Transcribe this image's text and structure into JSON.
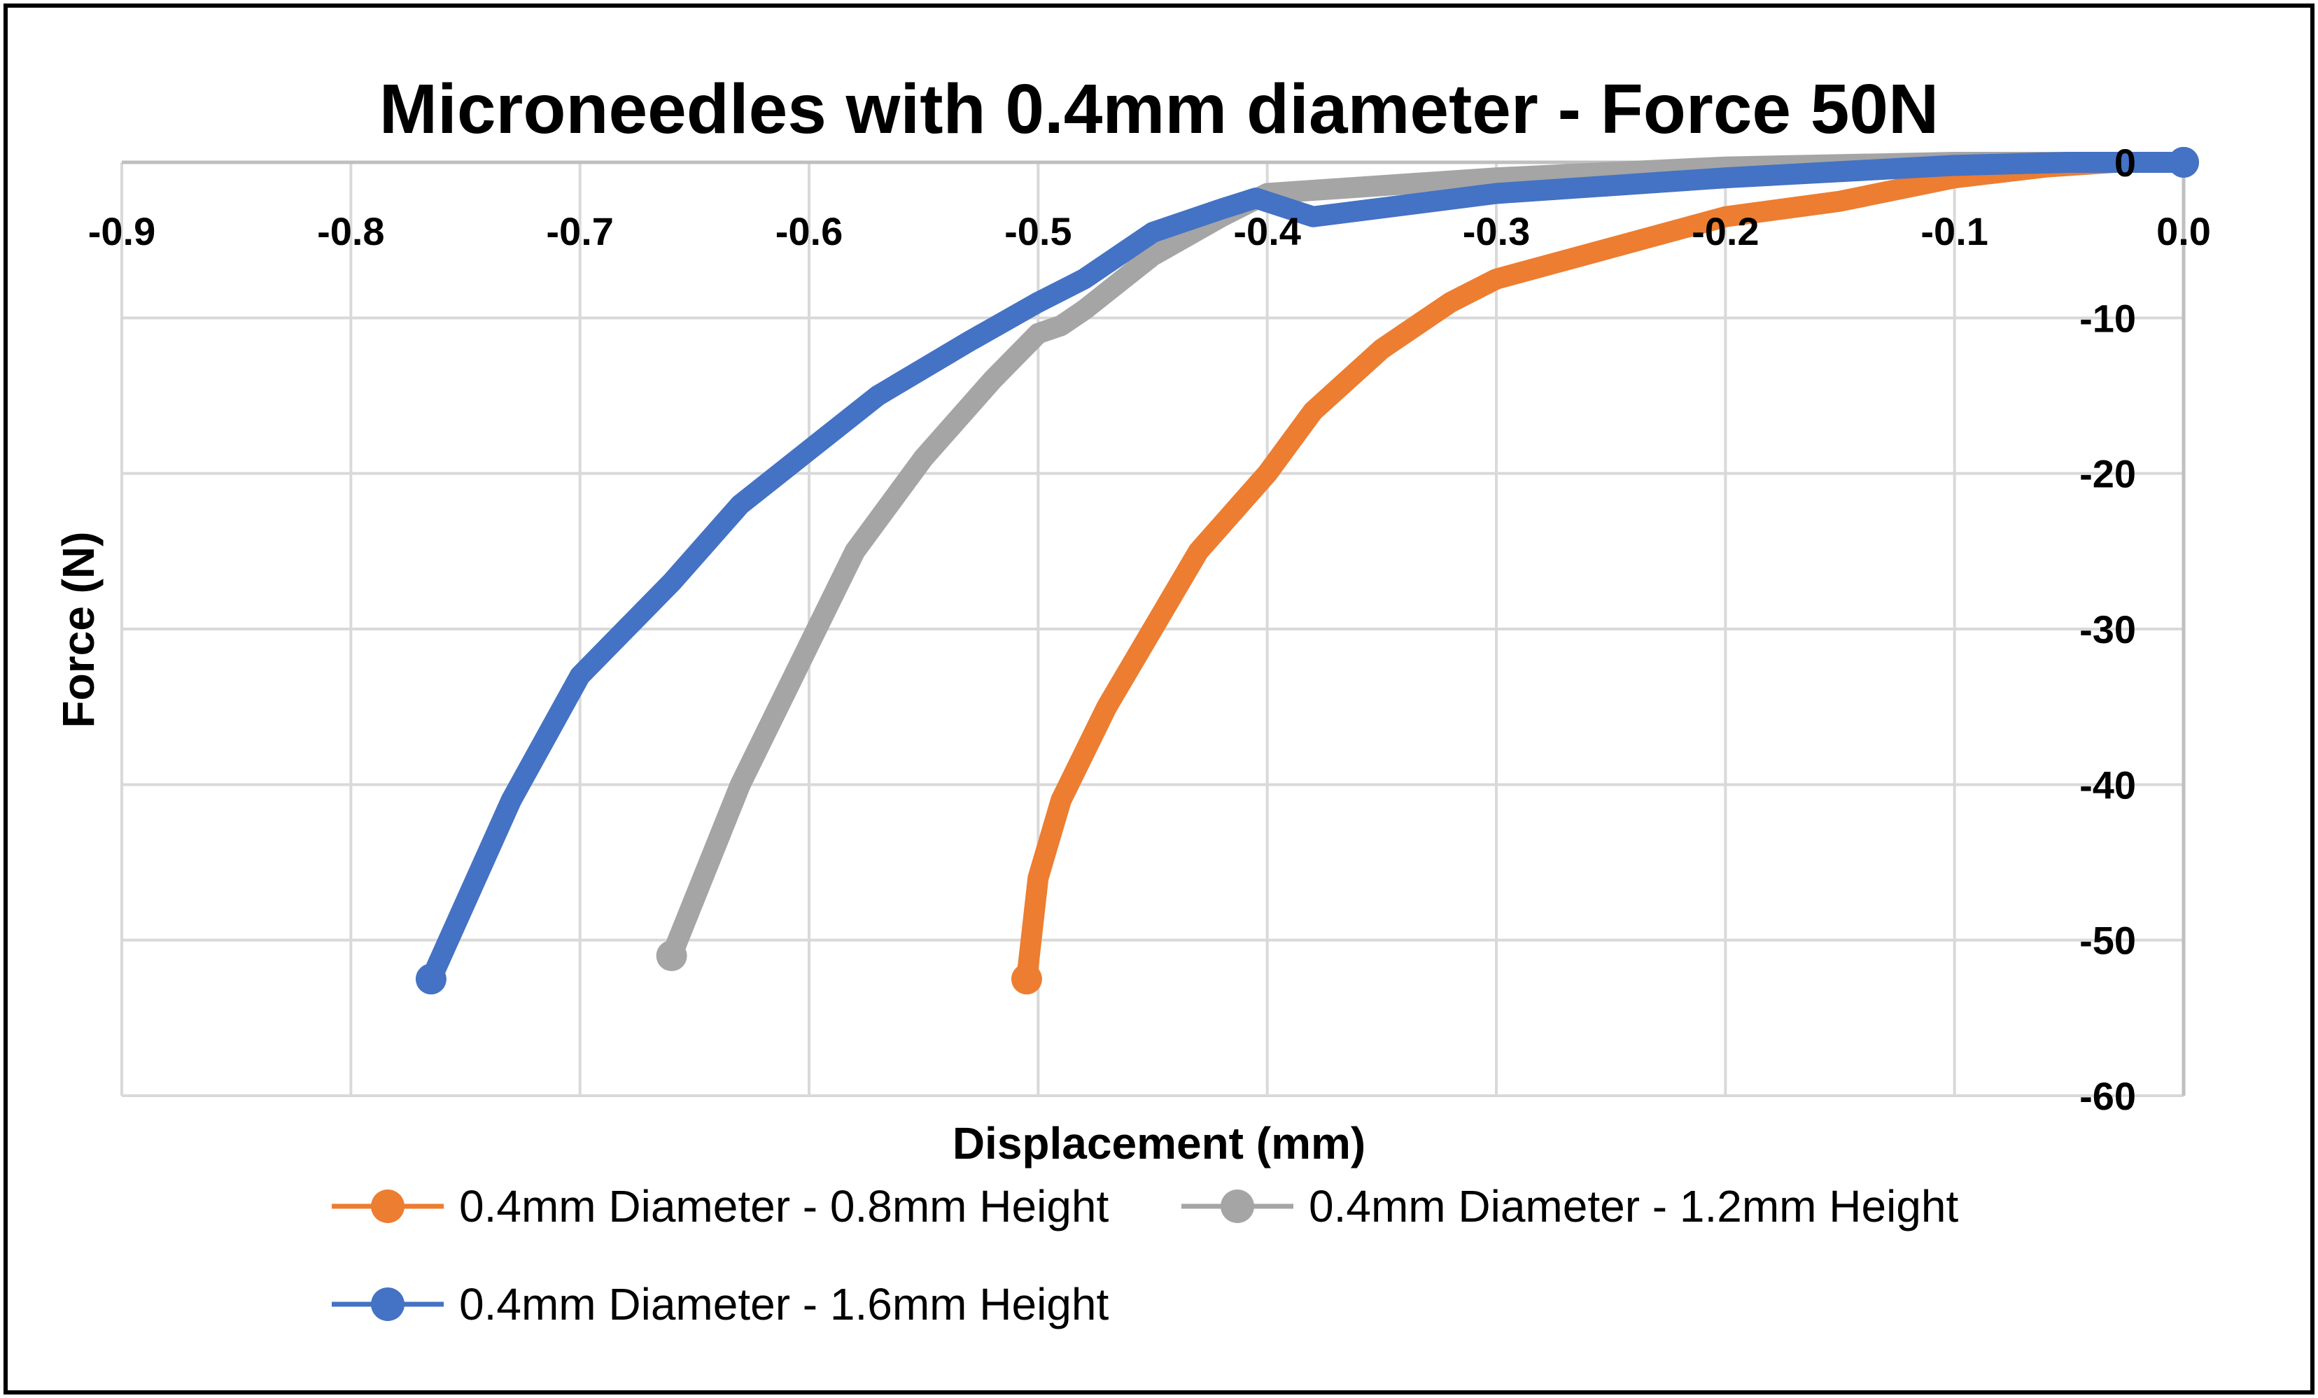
{
  "chart_data": {
    "type": "line",
    "title": "Microneedles with 0.4mm diameter - Force 50N",
    "xlabel": "Displacement (mm)",
    "ylabel": "Force (N)",
    "xlim": [
      -0.9,
      0.0
    ],
    "ylim": [
      -60,
      0
    ],
    "x_ticks": [
      "-0.9",
      "-0.8",
      "-0.7",
      "-0.6",
      "-0.5",
      "-0.4",
      "-0.3",
      "-0.2",
      "-0.1",
      "0.0"
    ],
    "x_tick_values": [
      -0.9,
      -0.8,
      -0.7,
      -0.6,
      -0.5,
      -0.4,
      -0.3,
      -0.2,
      -0.1,
      0.0
    ],
    "y_ticks": [
      "0",
      "-10",
      "-20",
      "-30",
      "-40",
      "-50",
      "-60"
    ],
    "y_tick_values": [
      0,
      -10,
      -20,
      -30,
      -40,
      -50,
      -60
    ],
    "grid": true,
    "legend_position": "bottom",
    "series": [
      {
        "name": "0.4mm Diameter - 0.8mm Height",
        "color": "#ED7D31",
        "x": [
          0.0,
          -0.03,
          -0.06,
          -0.1,
          -0.15,
          -0.2,
          -0.25,
          -0.3,
          -0.32,
          -0.35,
          -0.38,
          -0.4,
          -0.43,
          -0.45,
          -0.47,
          -0.49,
          -0.5,
          -0.505
        ],
        "y": [
          0,
          0,
          -0.3,
          -1.0,
          -2.5,
          -3.5,
          -5.5,
          -7.5,
          -9.0,
          -12.0,
          -16.0,
          -20.0,
          -25.0,
          -30.0,
          -35.0,
          -41.0,
          -46.0,
          -52.5
        ]
      },
      {
        "name": "0.4mm Diameter - 1.2mm Height",
        "color": "#A5A5A5",
        "x": [
          0.0,
          -0.05,
          -0.1,
          -0.2,
          -0.3,
          -0.38,
          -0.4,
          -0.42,
          -0.45,
          -0.48,
          -0.49,
          -0.5,
          -0.52,
          -0.55,
          -0.58,
          -0.6,
          -0.63,
          -0.66
        ],
        "y": [
          0,
          0,
          0,
          -0.3,
          -1.0,
          -1.8,
          -2.0,
          -3.5,
          -6.0,
          -9.5,
          -10.5,
          -11.0,
          -14.0,
          -19.0,
          -25.0,
          -31.0,
          -40.0,
          -51.0
        ]
      },
      {
        "name": "0.4mm Diameter - 1.6mm Height",
        "color": "#4472C4",
        "x": [
          0.0,
          -0.05,
          -0.1,
          -0.2,
          -0.3,
          -0.38,
          -0.405,
          -0.42,
          -0.45,
          -0.48,
          -0.5,
          -0.53,
          -0.57,
          -0.6,
          -0.63,
          -0.66,
          -0.7,
          -0.73,
          -0.765
        ],
        "y": [
          0,
          0,
          -0.2,
          -1.0,
          -2.0,
          -3.5,
          -2.3,
          -3.0,
          -4.5,
          -7.5,
          -9.0,
          -11.5,
          -15.0,
          -18.5,
          -22.0,
          -27.0,
          -33.0,
          -41.0,
          -52.5
        ]
      }
    ]
  }
}
